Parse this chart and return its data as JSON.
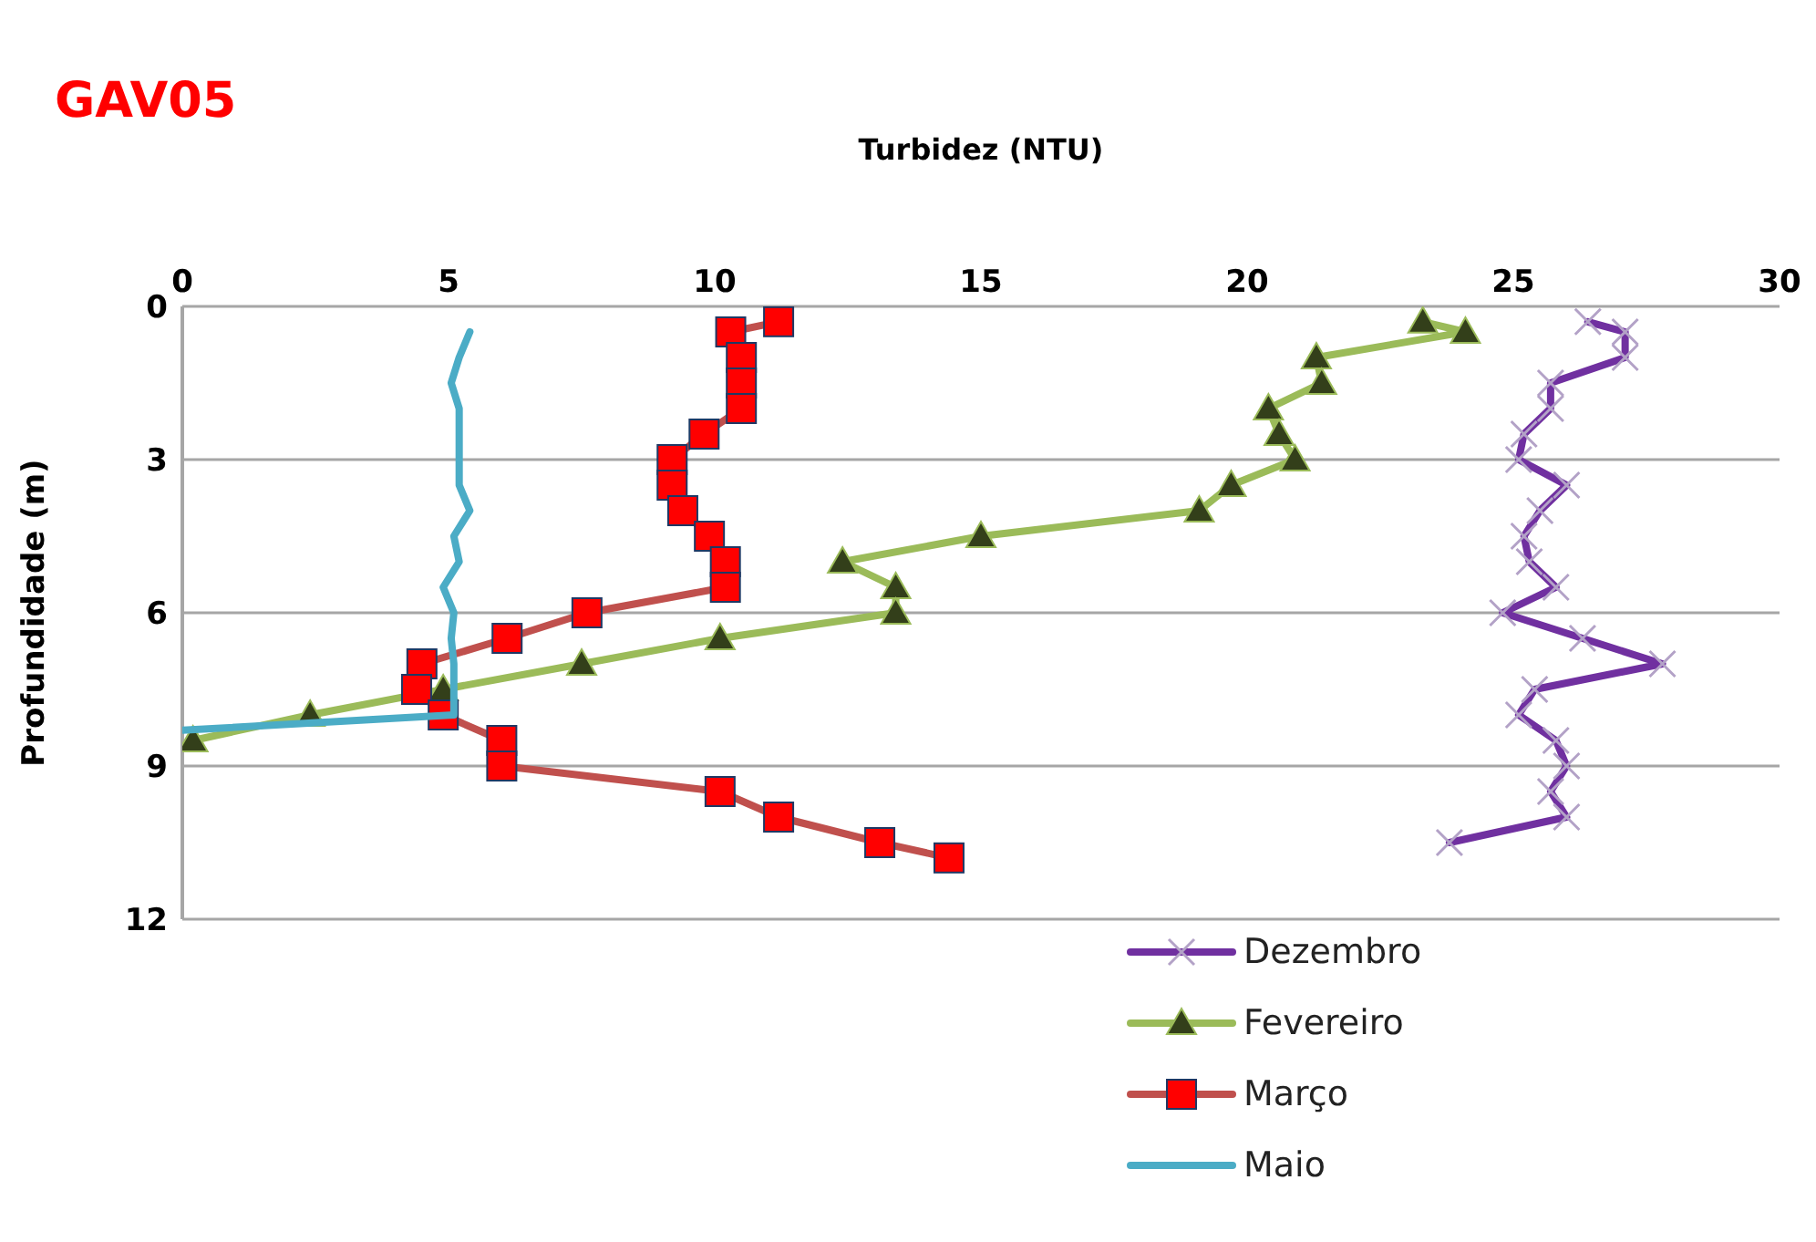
{
  "chart_data": {
    "type": "line",
    "title": "GAV05",
    "xlabel": "Turbidez (NTU)",
    "ylabel": "Profundidade (m)",
    "xlim": [
      0,
      30
    ],
    "xticks": [
      0,
      5,
      10,
      15,
      20,
      25,
      30
    ],
    "ylim": [
      12,
      0
    ],
    "yticks": [
      0,
      3,
      6,
      9,
      12
    ],
    "grid": "y",
    "legend": "bottom right",
    "series": [
      {
        "name": "Dezembro",
        "color": "#7030a0",
        "marker": "cross",
        "x": [
          26.4,
          27.1,
          27.1,
          25.7,
          25.7,
          25.2,
          25.1,
          26.0,
          25.5,
          25.2,
          25.3,
          25.8,
          24.8,
          26.3,
          27.8,
          25.4,
          25.1,
          25.8,
          26.0,
          25.7,
          26.0,
          23.8
        ],
        "values": [
          0.3,
          0.5,
          1.0,
          1.5,
          2.0,
          2.5,
          3.0,
          3.5,
          4.0,
          4.5,
          5.0,
          5.5,
          6.0,
          6.5,
          7.0,
          7.5,
          8.0,
          8.5,
          9.0,
          9.5,
          10.0,
          10.5
        ],
        "colors": [
          "#b3a2c7",
          "#b3a2c7",
          "#b3a2c7",
          "#b3a2c7",
          "#b3a2c7",
          "#b3a2c7",
          "#b3a2c7",
          "#b3a2c7",
          "#b3a2c7",
          "#b3a2c7",
          "#b3a2c7",
          "#b3a2c7",
          "#b3a2c7",
          "#b3a2c7",
          "#b3a2c7",
          "#b3a2c7",
          "#b3a2c7",
          "#b3a2c7",
          "#b3a2c7",
          "#b3a2c7",
          "#b3a2c7",
          "#b3a2c7"
        ]
      },
      {
        "name": "Fevereiro",
        "color": "#9bbb59",
        "marker": "triangle",
        "x": [
          23.3,
          24.1,
          21.3,
          21.4,
          20.4,
          20.6,
          20.9,
          19.7,
          19.1,
          15.0,
          12.4,
          13.4,
          13.4,
          10.1,
          7.5,
          4.9,
          2.4,
          0.2
        ],
        "values": [
          0.3,
          0.5,
          1.0,
          1.5,
          2.0,
          2.5,
          3.0,
          3.5,
          4.0,
          4.5,
          5.0,
          5.5,
          6.0,
          6.5,
          7.0,
          7.5,
          8.0,
          8.5
        ],
        "colors": [
          "#333f1a",
          "#333f1a",
          "#333f1a",
          "#333f1a",
          "#333f1a",
          "#333f1a",
          "#333f1a",
          "#333f1a",
          "#333f1a",
          "#333f1a",
          "#333f1a",
          "#333f1a",
          "#333f1a",
          "#333f1a",
          "#333f1a",
          "#333f1a",
          "#333f1a",
          "#333f1a"
        ]
      },
      {
        "name": "Março",
        "color": "#c0504d",
        "marker": "square",
        "x": [
          11.2,
          10.3,
          10.5,
          10.5,
          10.5,
          9.8,
          9.2,
          9.2,
          9.4,
          9.9,
          10.2,
          10.2,
          7.6,
          6.1,
          4.5,
          4.4,
          4.9,
          6.0,
          6.0,
          10.1,
          11.2,
          13.1,
          14.4
        ],
        "values": [
          0.3,
          0.5,
          1.0,
          1.5,
          2.0,
          2.5,
          3.0,
          3.5,
          4.0,
          4.5,
          5.0,
          5.5,
          6.0,
          6.5,
          7.0,
          7.5,
          8.0,
          8.5,
          9.0,
          9.5,
          10.0,
          10.5,
          10.8
        ],
        "colors": [
          "#ff0000",
          "#ff0000",
          "#ff0000",
          "#ff0000",
          "#ff0000",
          "#ff0000",
          "#ff0000",
          "#ff0000",
          "#ff0000",
          "#ff0000",
          "#ff0000",
          "#ff0000",
          "#ff0000",
          "#ff0000",
          "#ff0000",
          "#ff0000",
          "#ff0000",
          "#ff0000",
          "#ff0000",
          "#ff0000",
          "#ff0000",
          "#ff0000",
          "#ff0000"
        ]
      },
      {
        "name": "Maio",
        "color": "#4bacc6",
        "marker": "none",
        "x": [
          5.4,
          5.2,
          5.05,
          5.2,
          5.2,
          5.2,
          5.2,
          5.4,
          5.1,
          5.2,
          4.9,
          5.1,
          5.05,
          5.1,
          5.1,
          5.1,
          0
        ],
        "values": [
          0.5,
          1.0,
          1.5,
          2.0,
          2.5,
          3.0,
          3.5,
          4.0,
          4.5,
          5.0,
          5.5,
          6.0,
          6.5,
          7.0,
          7.5,
          8.0,
          8.3
        ]
      }
    ]
  }
}
